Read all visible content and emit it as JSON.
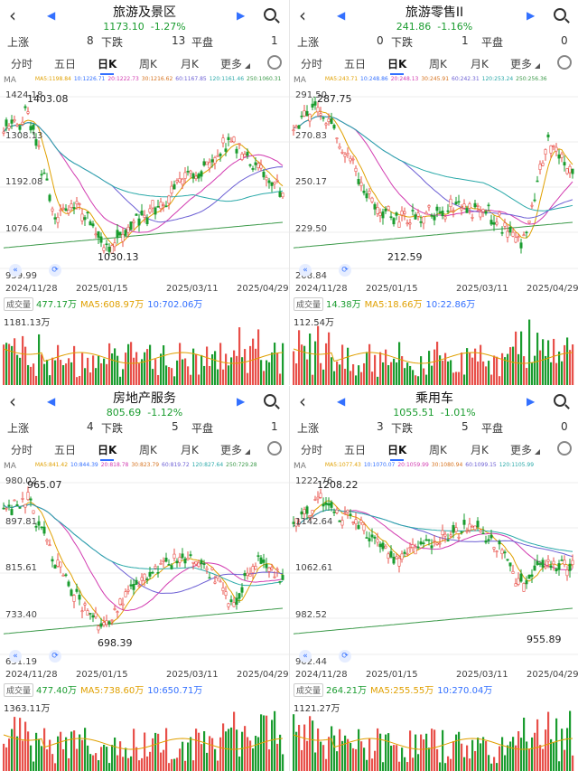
{
  "panels": [
    {
      "title": "旅游及景区",
      "price": "1173.10",
      "change": "-1.27%",
      "up_label": "上涨",
      "up": "8",
      "down_label": "下跌",
      "down": "13",
      "flat_label": "平盘",
      "flat": "1",
      "tabs": [
        "分时",
        "五日",
        "日K",
        "周K",
        "月K",
        "更多"
      ],
      "ma_tag": "MA",
      "ma": [
        "MA5:1198.84",
        "10:1226.71",
        "20:1222.73",
        "30:1216.62",
        "60:1167.85",
        "120:1161.46",
        "250:1060.31"
      ],
      "yticks": [
        "1424.18",
        "1308.13",
        "1192.08",
        "1076.04",
        "959.99"
      ],
      "high": "1403.08",
      "low": "1030.13",
      "dates": [
        "2024/11/28",
        "2025/01/15",
        "2025/03/11",
        "2025/04/29"
      ],
      "vol_tag": "成交量",
      "vol_now": "477.17万",
      "vol_ma5": "MA5:608.97万",
      "vol_ma10": "10:702.06万",
      "vol_max": "1181.13万"
    },
    {
      "title": "旅游零售II",
      "price": "241.86",
      "change": "-1.16%",
      "up_label": "上涨",
      "up": "0",
      "down_label": "下跌",
      "down": "1",
      "flat_label": "平盘",
      "flat": "0",
      "tabs": [
        "分时",
        "五日",
        "日K",
        "周K",
        "月K",
        "更多"
      ],
      "ma_tag": "MA",
      "ma": [
        "MA5:243.71",
        "10:248.86",
        "20:248.13",
        "30:245.91",
        "60:242.31",
        "120:253.24",
        "250:256.36"
      ],
      "yticks": [
        "291.50",
        "270.83",
        "250.17",
        "229.50",
        "208.84"
      ],
      "high": "287.75",
      "low": "212.59",
      "dates": [
        "2024/11/28",
        "2025/01/15",
        "2025/03/11",
        "2025/04/29"
      ],
      "vol_tag": "成交量",
      "vol_now": "14.38万",
      "vol_ma5": "MA5:18.66万",
      "vol_ma10": "10:22.86万",
      "vol_max": "112.54万"
    },
    {
      "title": "房地产服务",
      "price": "805.69",
      "change": "-1.12%",
      "up_label": "上涨",
      "up": "4",
      "down_label": "下跌",
      "down": "5",
      "flat_label": "平盘",
      "flat": "1",
      "tabs": [
        "分时",
        "五日",
        "日K",
        "周K",
        "月K",
        "更多"
      ],
      "ma_tag": "MA",
      "ma": [
        "MA5:841.42",
        "10:844.39",
        "20:818.78",
        "30:823.79",
        "60:819.72",
        "120:827.64",
        "250:729.28"
      ],
      "yticks": [
        "980.02",
        "897.81",
        "815.61",
        "733.40",
        "651.19"
      ],
      "high": "965.07",
      "low": "698.39",
      "dates": [
        "2024/11/28",
        "2025/01/15",
        "2025/03/11",
        "2025/04/29"
      ],
      "vol_tag": "成交量",
      "vol_now": "477.40万",
      "vol_ma5": "MA5:738.60万",
      "vol_ma10": "10:650.71万",
      "vol_max": "1363.11万"
    },
    {
      "title": "乘用车",
      "price": "1055.51",
      "change": "-1.01%",
      "up_label": "上涨",
      "up": "3",
      "down_label": "下跌",
      "down": "5",
      "flat_label": "平盘",
      "flat": "0",
      "tabs": [
        "分时",
        "五日",
        "日K",
        "周K",
        "月K",
        "更多"
      ],
      "ma_tag": "MA",
      "ma": [
        "MA5:1077.43",
        "10:1070.07",
        "20:1059.99",
        "30:1080.94",
        "60:1099.15",
        "120:1105.99"
      ],
      "yticks": [
        "1222.76",
        "1142.64",
        "1062.61",
        "982.52",
        "902.44"
      ],
      "high": "1208.22",
      "low": "955.89",
      "dates": [
        "2024/11/28",
        "2025/01/15",
        "2025/03/11",
        "2025/04/29"
      ],
      "vol_tag": "成交量",
      "vol_now": "264.21万",
      "vol_ma5": "MA5:255.55万",
      "vol_ma10": "10:270.04万",
      "vol_max": "1121.27万"
    }
  ],
  "icons": {
    "back": "back-chevron-icon",
    "prev": "prev-arrow-icon",
    "next": "next-arrow-icon",
    "search": "search-icon",
    "settings": "settings-icon",
    "expand": "expand-icon"
  },
  "colors": {
    "up": "#e8504a",
    "down": "#1a9c2f",
    "accent": "#3370ff",
    "ma5": "#e0a000",
    "ma10": "#3370ff",
    "ma20": "#d23bb0",
    "ma30": "#d6731f",
    "ma60": "#6c5fd4",
    "ma120": "#2aa9a9",
    "ma250": "#3c9a4a"
  }
}
